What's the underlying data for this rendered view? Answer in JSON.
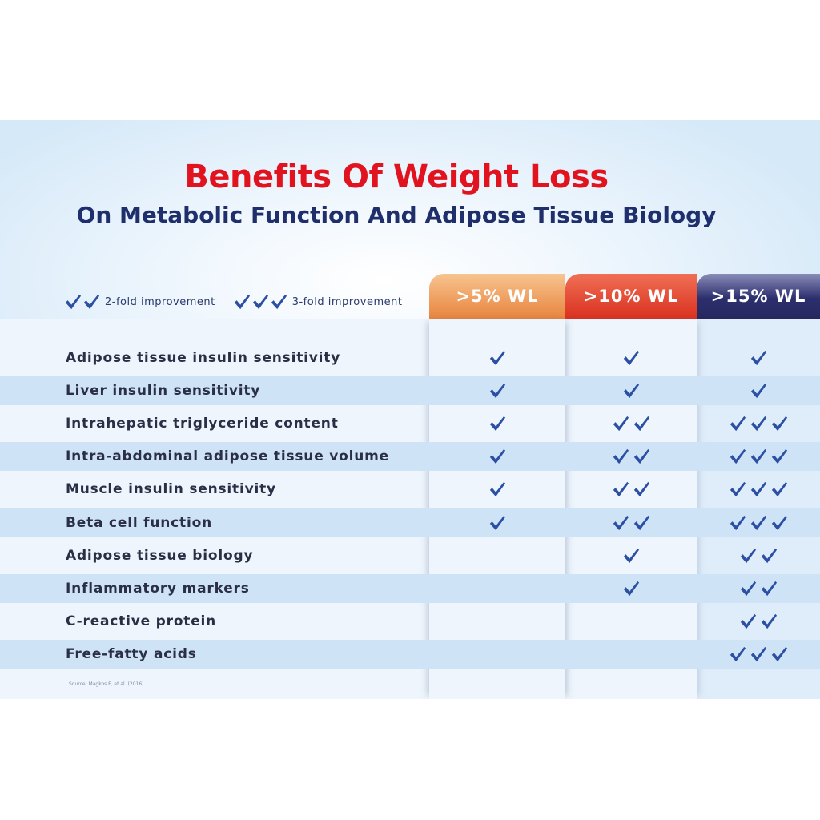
{
  "title": "Benefits Of Weight Loss",
  "subtitle": "On Metabolic Function And Adipose Tissue Biology",
  "legend": {
    "two_fold": "2-fold improvement",
    "three_fold": "3-fold improvement"
  },
  "columns": [
    ">5% WL",
    ">10% WL",
    ">15% WL"
  ],
  "colors": {
    "title": "#e0131f",
    "subtitle": "#1f2f6b",
    "check": "#2b4fa3",
    "col_5": "#e8843e",
    "col_10": "#d9311f",
    "col_15": "#25285f"
  },
  "rows": [
    {
      "label": "Adipose tissue insulin sensitivity",
      "checks": [
        1,
        1,
        1
      ]
    },
    {
      "label": "Liver insulin sensitivity",
      "checks": [
        1,
        1,
        1
      ]
    },
    {
      "label": "Intrahepatic triglyceride content",
      "checks": [
        1,
        2,
        3
      ]
    },
    {
      "label": "Intra-abdominal adipose tissue volume",
      "checks": [
        1,
        2,
        3
      ]
    },
    {
      "label": "Muscle insulin sensitivity",
      "checks": [
        1,
        2,
        3
      ]
    },
    {
      "label": "Beta cell function",
      "checks": [
        1,
        2,
        3
      ]
    },
    {
      "label": "Adipose tissue biology",
      "checks": [
        0,
        1,
        2
      ]
    },
    {
      "label": "Inflammatory markers",
      "checks": [
        0,
        1,
        2
      ]
    },
    {
      "label": "C-reactive protein",
      "checks": [
        0,
        0,
        2
      ]
    },
    {
      "label": "Free-fatty acids",
      "checks": [
        0,
        0,
        3
      ]
    }
  ],
  "source": "Source: Magkos F, et al. (2016)."
}
